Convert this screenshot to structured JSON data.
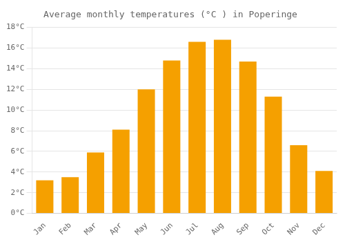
{
  "chart_data": {
    "type": "bar",
    "title": "Average monthly temperatures (°C ) in Poperinge",
    "categories": [
      "Jan",
      "Feb",
      "Mar",
      "Apr",
      "May",
      "Jun",
      "Jul",
      "Aug",
      "Sep",
      "Oct",
      "Nov",
      "Dec"
    ],
    "values": [
      3.2,
      3.5,
      5.9,
      8.1,
      12.0,
      14.8,
      16.6,
      16.8,
      14.7,
      11.3,
      6.6,
      4.1
    ],
    "color": "#F5A000",
    "ylim": [
      0,
      18
    ],
    "yticks": [
      {
        "value": 0,
        "label": "0°C"
      },
      {
        "value": 2,
        "label": "2°C"
      },
      {
        "value": 4,
        "label": "4°C"
      },
      {
        "value": 6,
        "label": "6°C"
      },
      {
        "value": 8,
        "label": "8°C"
      },
      {
        "value": 10,
        "label": "10°C"
      },
      {
        "value": 12,
        "label": "12°C"
      },
      {
        "value": 14,
        "label": "14°C"
      },
      {
        "value": 16,
        "label": "16°C"
      },
      {
        "value": 18,
        "label": "18°C"
      }
    ],
    "grid": true
  }
}
